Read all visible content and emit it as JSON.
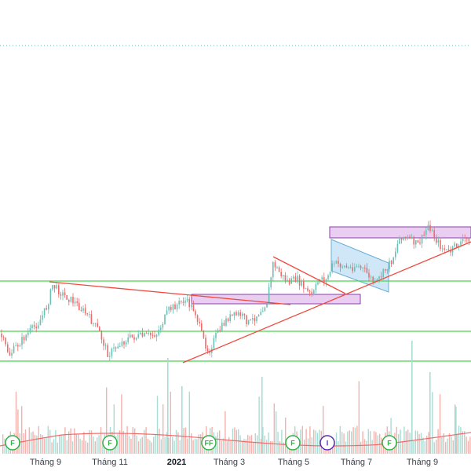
{
  "chart_data": {
    "type": "candlestick",
    "title": "",
    "xlabel": "",
    "ylabel": "",
    "x_tick_labels": [
      {
        "label": "Tháng 9",
        "bold": false
      },
      {
        "label": "Tháng 11",
        "bold": false
      },
      {
        "label": "2021",
        "bold": true
      },
      {
        "label": "Tháng 3",
        "bold": false
      },
      {
        "label": "Tháng 5",
        "bold": false
      },
      {
        "label": "Tháng 7",
        "bold": false
      },
      {
        "label": "Tháng 9",
        "bold": false
      }
    ],
    "event_markers": [
      {
        "text": "F",
        "color": "#2fb344"
      },
      {
        "text": "F",
        "color": "#2fb344"
      },
      {
        "text": "FF",
        "color": "#2fb344"
      },
      {
        "text": "F",
        "color": "#2fb344"
      },
      {
        "text": "I",
        "color": "#5b2bb5"
      },
      {
        "text": "F",
        "color": "#2fb344"
      }
    ],
    "colors": {
      "up": "#6cc0b3",
      "down": "#ef6b6b",
      "volume_up": "#a9dcd4",
      "volume_down": "#f4b1ad",
      "horizontal_levels": "#4cd44c",
      "trend_lines": "#ef4a3f",
      "zones": "#d9a6e8",
      "channel": "#a9d4f2",
      "volume_ma": "#ef6b6b",
      "top_dotted": "#52b8ad"
    },
    "grid": false,
    "legend": "none"
  }
}
